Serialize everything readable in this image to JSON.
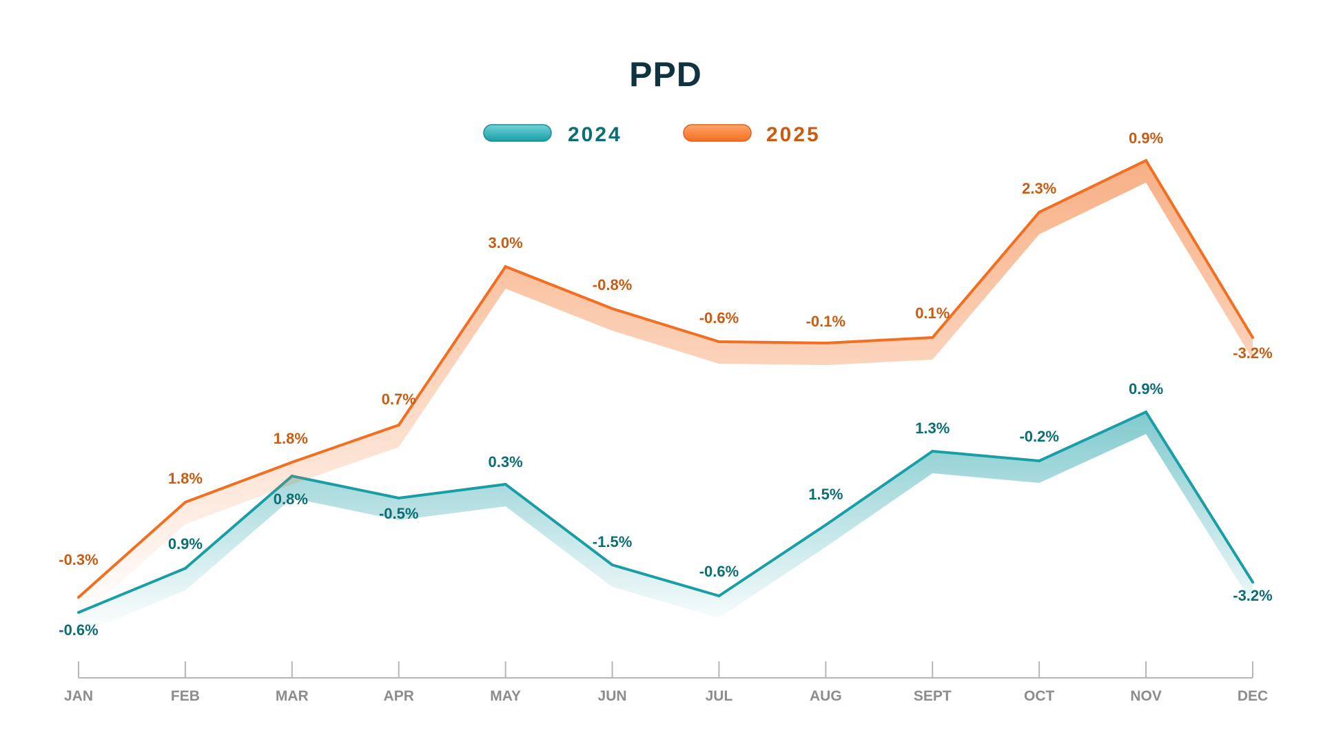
{
  "chart_data": {
    "type": "line",
    "title": "PPD",
    "categories": [
      "JAN",
      "FEB",
      "MAR",
      "APR",
      "MAY",
      "JUN",
      "JUL",
      "AUG",
      "SEPT",
      "OCT",
      "NOV",
      "DEC"
    ],
    "legend_position": "top-center",
    "grid": false,
    "series": [
      {
        "name": "2024",
        "color": "#1a9ea6",
        "label_color": "#0b6e73",
        "data_labels": [
          "-0.6%",
          "0.9%",
          "0.8%",
          "-0.5%",
          "0.3%",
          "-1.5%",
          "-0.6%",
          "1.5%",
          "1.3%",
          "-0.2%",
          "0.9%",
          "-3.2%"
        ]
      },
      {
        "name": "2025",
        "color": "#f26f21",
        "label_color": "#c95b12",
        "data_labels": [
          "-0.3%",
          "1.8%",
          "1.8%",
          "0.7%",
          "3.0%",
          "-0.8%",
          "-0.6%",
          "-0.1%",
          "0.1%",
          "2.3%",
          "0.9%",
          "-3.2%"
        ]
      }
    ]
  }
}
